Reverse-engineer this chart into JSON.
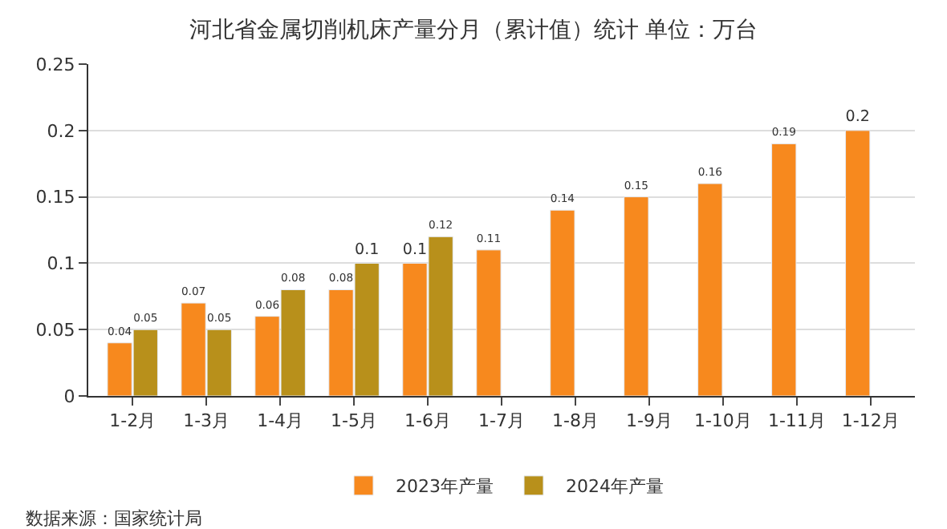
{
  "chart_data": {
    "type": "bar",
    "title": "河北省金属切削机床产量分月（累计值）统计 单位：万台",
    "categories": [
      "1-2月",
      "1-3月",
      "1-4月",
      "1-5月",
      "1-6月",
      "1-7月",
      "1-8月",
      "1-9月",
      "1-10月",
      "1-11月",
      "1-12月"
    ],
    "series": [
      {
        "name": "2023年产量",
        "color": "#f7891e",
        "values": [
          0.04,
          0.07,
          0.06,
          0.08,
          0.1,
          0.11,
          0.14,
          0.15,
          0.16,
          0.19,
          0.2
        ]
      },
      {
        "name": "2024年产量",
        "color": "#b8901b",
        "values": [
          0.05,
          0.05,
          0.08,
          0.1,
          0.12,
          null,
          null,
          null,
          null,
          null,
          null
        ]
      }
    ],
    "ylim": [
      0,
      0.25
    ],
    "yticks": [
      0,
      0.05,
      0.1,
      0.15,
      0.2,
      0.25
    ],
    "grid": "y",
    "legend": "bottom",
    "data_labels": true,
    "annotations": [
      "数据来源：国家统计局"
    ]
  }
}
